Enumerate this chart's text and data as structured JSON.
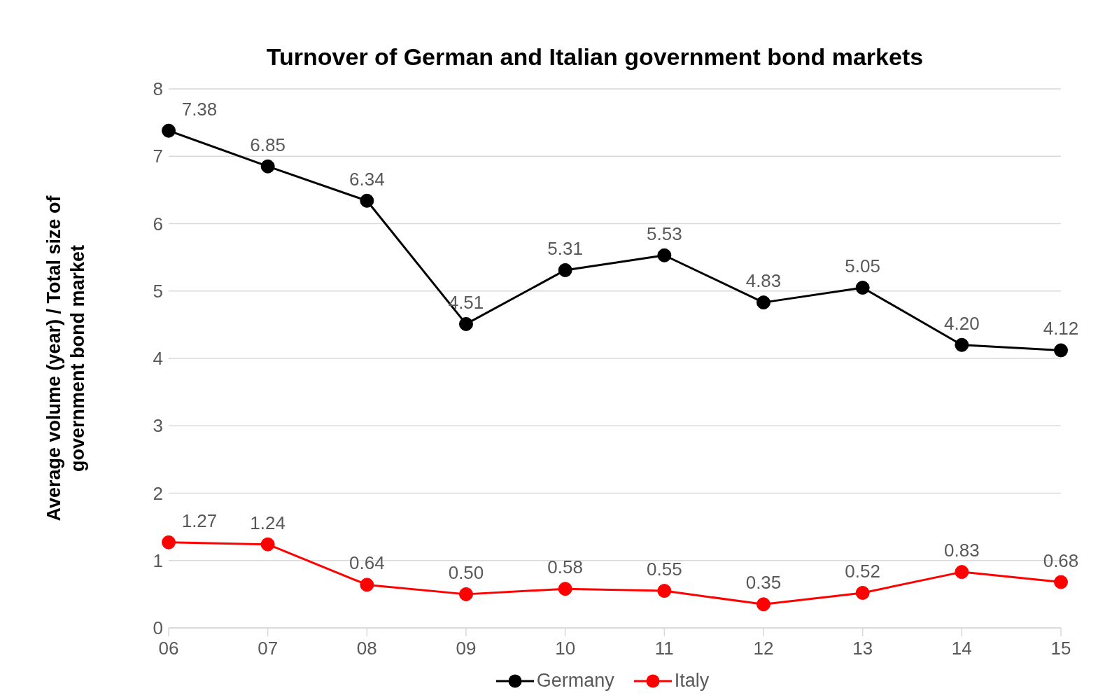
{
  "chart_data": {
    "type": "line",
    "title": "Turnover of German and Italian government bond markets",
    "ylabel": "Average volume (year) / Total size of government bond market",
    "categories": [
      "06",
      "07",
      "08",
      "09",
      "10",
      "11",
      "12",
      "13",
      "14",
      "15"
    ],
    "series": [
      {
        "name": "Germany",
        "color": "#000000",
        "values": [
          7.38,
          6.85,
          6.34,
          4.51,
          5.31,
          5.53,
          4.83,
          5.05,
          4.2,
          4.12
        ],
        "value_labels": [
          "7.38",
          "6.85",
          "6.34",
          "4.51",
          "5.31",
          "5.53",
          "4.83",
          "5.05",
          "4.20",
          "4.12"
        ]
      },
      {
        "name": "Italy",
        "color": "#ff0000",
        "values": [
          1.27,
          1.24,
          0.64,
          0.5,
          0.58,
          0.55,
          0.35,
          0.52,
          0.83,
          0.68
        ],
        "value_labels": [
          "1.27",
          "1.24",
          "0.64",
          "0.50",
          "0.58",
          "0.55",
          "0.35",
          "0.52",
          "0.83",
          "0.68"
        ]
      }
    ],
    "ylim": [
      0,
      8
    ],
    "yticks": [
      0,
      1,
      2,
      3,
      4,
      5,
      6,
      7,
      8
    ],
    "grid": "y",
    "legend": "bottom",
    "marker": "circle",
    "line_style": "solid"
  }
}
